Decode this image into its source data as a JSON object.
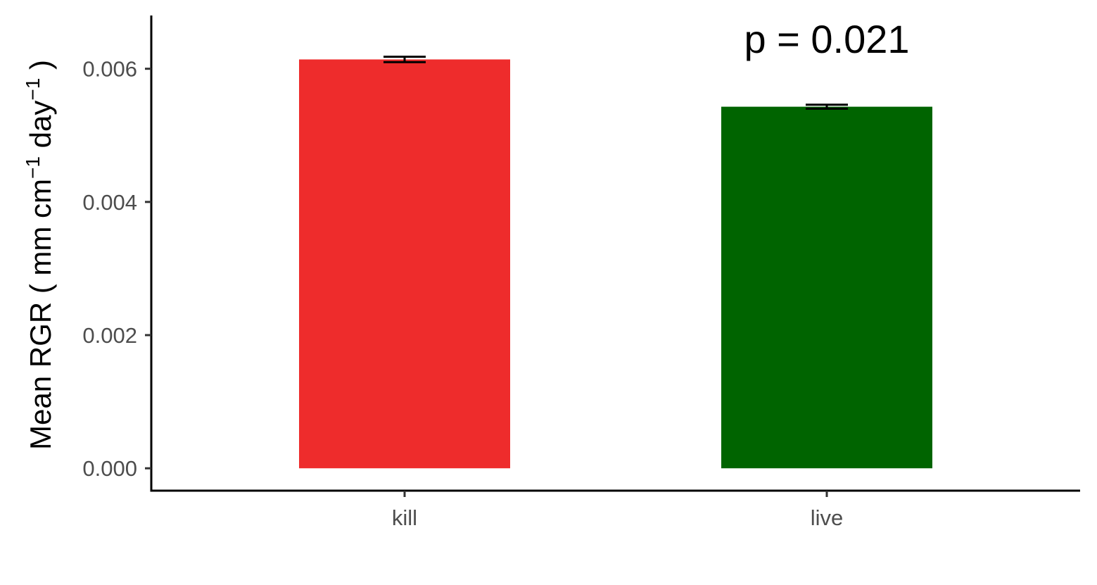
{
  "chart_data": {
    "type": "bar",
    "title": "",
    "xlabel": "",
    "ylabel": {
      "prefix": "Mean RGR ( mm cm",
      "sup1": "−1",
      "middle": " day",
      "sup2": "−1",
      "suffix": " )"
    },
    "categories": [
      "kill",
      "live"
    ],
    "values": [
      0.00614,
      0.00543
    ],
    "errors": [
      4e-05,
      3e-05
    ],
    "colors": [
      "#ee2c2c",
      "#006400"
    ],
    "ylim": [
      -0.000336,
      0.0068
    ],
    "yticks": [
      0.0,
      0.002,
      0.004,
      0.006
    ],
    "ytick_labels": [
      "0.000",
      "0.002",
      "0.004",
      "0.006"
    ],
    "annotation": {
      "text": "p = 0.021",
      "x_category": "live",
      "y": 0.00645
    },
    "grid": false,
    "legend": "none"
  }
}
